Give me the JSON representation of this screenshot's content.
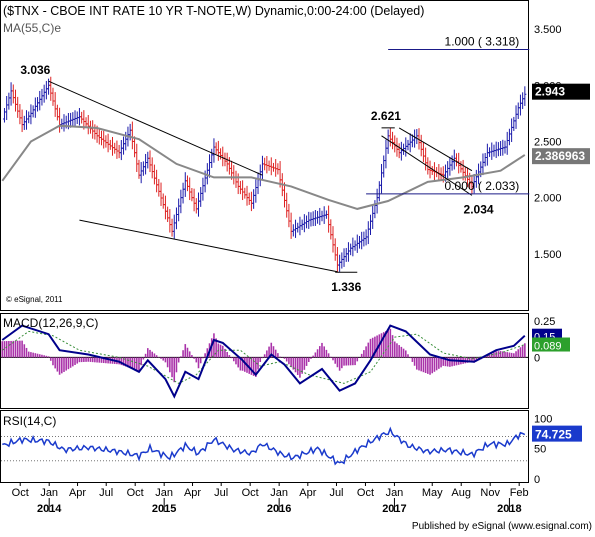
{
  "header": {
    "title": "($TNX - CBOE INT RATE 10 YR T-NOTE,W) Dynamic,0:00-24:00 (Delayed)",
    "ma_label": "MA(55,C)e"
  },
  "copyright": "© eSignal, 2011",
  "footer": "Published by eSignal (www.esignal.com)",
  "colors": {
    "up": "#1a1aaa",
    "down": "#dd2222",
    "ma": "#888888",
    "macd": "#00008b",
    "signal": "#3a8f3a",
    "histogram": "#aa33aa",
    "rsi": "#1a3acc"
  },
  "chart_data": [
    {
      "type": "candlestick",
      "panel": "price",
      "title": "($TNX - CBOE INT RATE 10 YR T-NOTE,W) Dynamic,0:00-24:00 (Delayed)",
      "ylim": [
        1.0,
        3.75
      ],
      "y_ticks": [
        3.5,
        3.0,
        2.5,
        2.0,
        1.5
      ],
      "y_tick_labels": [
        "3.500",
        "3.000",
        "2.500",
        "2.000",
        "1.500"
      ],
      "x_range": [
        "2013-08",
        "2018-03"
      ],
      "x_ticks": [
        {
          "label": "Oct",
          "date": "2013-10"
        },
        {
          "label": "Jan",
          "date": "2014-01"
        },
        {
          "label": "Apr",
          "date": "2014-04"
        },
        {
          "label": "Jul",
          "date": "2014-07"
        },
        {
          "label": "Oct",
          "date": "2014-10"
        },
        {
          "label": "Jan",
          "date": "2015-01"
        },
        {
          "label": "Apr",
          "date": "2015-04"
        },
        {
          "label": "Jul",
          "date": "2015-07"
        },
        {
          "label": "Oct",
          "date": "2015-10"
        },
        {
          "label": "Jan",
          "date": "2016-01"
        },
        {
          "label": "Apr",
          "date": "2016-04"
        },
        {
          "label": "Jul",
          "date": "2016-07"
        },
        {
          "label": "Oct",
          "date": "2016-10"
        },
        {
          "label": "Jan",
          "date": "2017-01"
        },
        {
          "label": "May",
          "date": "2017-05"
        },
        {
          "label": "Aug",
          "date": "2017-08"
        },
        {
          "label": "Nov",
          "date": "2017-11"
        },
        {
          "label": "Feb",
          "date": "2018-02"
        }
      ],
      "year_labels": [
        {
          "label": "2014",
          "date": "2014-01"
        },
        {
          "label": "2015",
          "date": "2015-01"
        },
        {
          "label": "2016",
          "date": "2016-01"
        },
        {
          "label": "2017",
          "date": "2017-01"
        },
        {
          "label": "2018",
          "date": "2018-01"
        }
      ],
      "anchors": [
        [
          "2013-08-05",
          2.7
        ],
        [
          "2013-09-02",
          2.95
        ],
        [
          "2013-10-07",
          2.65
        ],
        [
          "2013-11-04",
          2.75
        ],
        [
          "2013-12-30",
          3.0
        ],
        [
          "2014-02-03",
          2.65
        ],
        [
          "2014-04-07",
          2.72
        ],
        [
          "2014-06-02",
          2.55
        ],
        [
          "2014-08-11",
          2.4
        ],
        [
          "2014-09-15",
          2.6
        ],
        [
          "2014-10-13",
          2.2
        ],
        [
          "2014-11-10",
          2.35
        ],
        [
          "2015-01-12",
          1.82
        ],
        [
          "2015-01-26",
          1.7
        ],
        [
          "2015-03-09",
          2.15
        ],
        [
          "2015-04-13",
          1.9
        ],
        [
          "2015-06-08",
          2.45
        ],
        [
          "2015-07-20",
          2.3
        ],
        [
          "2015-08-24",
          2.1
        ],
        [
          "2015-10-05",
          1.95
        ],
        [
          "2015-11-09",
          2.3
        ],
        [
          "2015-12-28",
          2.25
        ],
        [
          "2016-02-08",
          1.7
        ],
        [
          "2016-04-04",
          1.8
        ],
        [
          "2016-05-30",
          1.85
        ],
        [
          "2016-07-04",
          1.4
        ],
        [
          "2016-08-15",
          1.55
        ],
        [
          "2016-10-03",
          1.65
        ],
        [
          "2016-11-07",
          2.0
        ],
        [
          "2016-12-12",
          2.55
        ],
        [
          "2017-01-16",
          2.4
        ],
        [
          "2017-03-13",
          2.55
        ],
        [
          "2017-04-17",
          2.25
        ],
        [
          "2017-06-05",
          2.2
        ],
        [
          "2017-07-10",
          2.35
        ],
        [
          "2017-09-04",
          2.1
        ],
        [
          "2017-10-23",
          2.4
        ],
        [
          "2017-12-18",
          2.45
        ],
        [
          "2018-01-29",
          2.8
        ],
        [
          "2018-02-19",
          2.92
        ]
      ],
      "last_value": 2.943,
      "moving_average": {
        "name": "MA(55,C)e",
        "last_value": 2.386963,
        "points": [
          [
            "2013-08-05",
            2.15
          ],
          [
            "2013-11-04",
            2.5
          ],
          [
            "2014-02-03",
            2.64
          ],
          [
            "2014-06-02",
            2.62
          ],
          [
            "2014-10-13",
            2.52
          ],
          [
            "2015-02-09",
            2.3
          ],
          [
            "2015-06-08",
            2.18
          ],
          [
            "2015-10-05",
            2.18
          ],
          [
            "2016-02-08",
            2.1
          ],
          [
            "2016-06-06",
            1.98
          ],
          [
            "2016-09-05",
            1.9
          ],
          [
            "2016-12-12",
            1.97
          ],
          [
            "2017-04-17",
            2.14
          ],
          [
            "2017-08-07",
            2.18
          ],
          [
            "2017-12-04",
            2.24
          ],
          [
            "2018-02-19",
            2.38
          ]
        ]
      },
      "trendlines": [
        {
          "from": [
            "2013-12-30",
            3.036
          ],
          "to": [
            "2015-11-09",
            2.2
          ]
        },
        {
          "from": [
            "2014-04-07",
            1.8
          ],
          "to": [
            "2016-07-04",
            1.34
          ]
        },
        {
          "from": [
            "2017-01-16",
            2.62
          ],
          "to": [
            "2017-09-04",
            2.24
          ]
        },
        {
          "from": [
            "2016-11-21",
            2.55
          ],
          "to": [
            "2017-09-04",
            2.02
          ]
        }
      ],
      "horizontal_levels": [
        {
          "from": "2016-12-12",
          "to": "2018-03-05",
          "value": 3.318,
          "label": "1.000 ( 3.318)"
        },
        {
          "from": "2016-11-21",
          "to": "2017-01-02",
          "value": 2.621
        },
        {
          "from": "2016-10-03",
          "to": "2018-03-05",
          "value": 2.033,
          "label": "0.000 ( 2.033)"
        },
        {
          "from": "2016-06-27",
          "to": "2016-09-05",
          "value": 1.336
        }
      ],
      "annotations": [
        {
          "text": "3.036",
          "at": [
            "2013-11-18",
            3.1
          ]
        },
        {
          "text": "2.621",
          "at": [
            "2016-12-05",
            2.69
          ]
        },
        {
          "text": "2.034",
          "at": [
            "2017-09-25",
            1.86
          ]
        },
        {
          "text": "1.336",
          "at": [
            "2016-08-01",
            1.17
          ]
        }
      ]
    },
    {
      "type": "line",
      "panel": "macd",
      "title": "MACD(12,26,9,C)",
      "ylim": [
        -0.35,
        0.3
      ],
      "y_ticks": [
        0.25,
        0
      ],
      "y_tick_labels": [
        "0.25",
        "0"
      ],
      "series": [
        {
          "name": "MACD",
          "last_value": 0.15,
          "values": [
            [
              "2013-08-05",
              0.12
            ],
            [
              "2013-10-07",
              0.22
            ],
            [
              "2013-12-30",
              0.16
            ],
            [
              "2014-02-03",
              0.05
            ],
            [
              "2014-05-05",
              0.02
            ],
            [
              "2014-08-11",
              -0.03
            ],
            [
              "2014-10-13",
              -0.1
            ],
            [
              "2014-11-10",
              -0.02
            ],
            [
              "2015-01-05",
              -0.15
            ],
            [
              "2015-02-02",
              -0.27
            ],
            [
              "2015-03-09",
              -0.1
            ],
            [
              "2015-04-20",
              -0.15
            ],
            [
              "2015-06-08",
              0.12
            ],
            [
              "2015-07-06",
              0.1
            ],
            [
              "2015-09-07",
              -0.02
            ],
            [
              "2015-10-19",
              -0.12
            ],
            [
              "2015-12-07",
              0.02
            ],
            [
              "2016-01-18",
              -0.05
            ],
            [
              "2016-03-07",
              -0.18
            ],
            [
              "2016-05-16",
              -0.08
            ],
            [
              "2016-07-11",
              -0.23
            ],
            [
              "2016-08-29",
              -0.18
            ],
            [
              "2016-10-17",
              -0.02
            ],
            [
              "2016-12-19",
              0.22
            ],
            [
              "2017-02-06",
              0.18
            ],
            [
              "2017-04-24",
              0.02
            ],
            [
              "2017-06-26",
              -0.02
            ],
            [
              "2017-09-11",
              -0.03
            ],
            [
              "2017-11-20",
              0.05
            ],
            [
              "2018-01-15",
              0.08
            ],
            [
              "2018-02-19",
              0.15
            ]
          ]
        },
        {
          "name": "Signal",
          "last_value": 0.089,
          "values": [
            [
              "2013-08-05",
              0.05
            ],
            [
              "2013-10-28",
              0.18
            ],
            [
              "2014-01-13",
              0.15
            ],
            [
              "2014-04-07",
              0.05
            ],
            [
              "2014-08-11",
              0.0
            ],
            [
              "2014-11-10",
              -0.06
            ],
            [
              "2015-02-16",
              -0.18
            ],
            [
              "2015-04-13",
              -0.12
            ],
            [
              "2015-06-22",
              0.05
            ],
            [
              "2015-08-31",
              0.05
            ],
            [
              "2015-11-02",
              -0.06
            ],
            [
              "2016-01-04",
              -0.03
            ],
            [
              "2016-04-04",
              -0.12
            ],
            [
              "2016-07-25",
              -0.18
            ],
            [
              "2016-10-17",
              -0.1
            ],
            [
              "2017-01-02",
              0.14
            ],
            [
              "2017-03-13",
              0.16
            ],
            [
              "2017-06-05",
              0.03
            ],
            [
              "2017-09-04",
              -0.01
            ],
            [
              "2017-12-04",
              0.03
            ],
            [
              "2018-02-19",
              0.089
            ]
          ]
        }
      ],
      "histogram_scale": 1.6
    },
    {
      "type": "line",
      "panel": "rsi",
      "title": "RSI(14,C)",
      "ylim": [
        -5,
        112
      ],
      "y_ticks": [
        100,
        50,
        0
      ],
      "y_tick_labels": [
        "100",
        "50",
        "0"
      ],
      "reference_levels": [
        70,
        30
      ],
      "series": [
        {
          "name": "RSI",
          "last_value": 74.725,
          "values": [
            [
              "2013-08-05",
              55
            ],
            [
              "2013-10-07",
              65
            ],
            [
              "2013-12-30",
              62
            ],
            [
              "2014-02-17",
              48
            ],
            [
              "2014-05-05",
              52
            ],
            [
              "2014-08-11",
              45
            ],
            [
              "2014-10-13",
              38
            ],
            [
              "2014-11-17",
              50
            ],
            [
              "2015-01-19",
              35
            ],
            [
              "2015-03-09",
              55
            ],
            [
              "2015-04-20",
              42
            ],
            [
              "2015-06-08",
              65
            ],
            [
              "2015-08-10",
              48
            ],
            [
              "2015-10-05",
              42
            ],
            [
              "2015-11-09",
              58
            ],
            [
              "2016-01-11",
              40
            ],
            [
              "2016-02-15",
              35
            ],
            [
              "2016-05-02",
              50
            ],
            [
              "2016-07-11",
              25
            ],
            [
              "2016-09-05",
              48
            ],
            [
              "2016-11-21",
              72
            ],
            [
              "2016-12-19",
              78
            ],
            [
              "2017-02-13",
              55
            ],
            [
              "2017-04-17",
              45
            ],
            [
              "2017-06-19",
              48
            ],
            [
              "2017-09-04",
              40
            ],
            [
              "2017-10-30",
              58
            ],
            [
              "2017-12-25",
              57
            ],
            [
              "2018-01-29",
              72
            ],
            [
              "2018-02-19",
              74.7
            ]
          ]
        }
      ]
    }
  ]
}
